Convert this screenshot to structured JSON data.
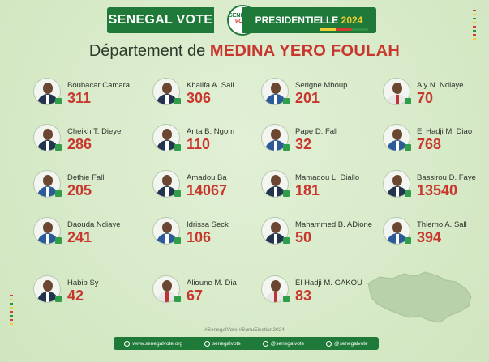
{
  "header": {
    "brand": "SENEGAL VOTE",
    "logo_line1": "SENEGAL",
    "logo_line2": "VOTE",
    "election": "PRESIDENTIELLE",
    "year": "2024"
  },
  "title": {
    "prefix": "Département de",
    "place": "MEDINA YERO FOULAH"
  },
  "candidates": [
    {
      "name": "Boubacar Camara",
      "votes": "311"
    },
    {
      "name": "Khalifa A. Sall",
      "votes": "306"
    },
    {
      "name": "Serigne Mboup",
      "votes": "201"
    },
    {
      "name": "Aly N. Ndiaye",
      "votes": "70"
    },
    {
      "name": "Cheikh T. Dieye",
      "votes": "286"
    },
    {
      "name": "Anta B. Ngom",
      "votes": "110"
    },
    {
      "name": "Pape D. Fall",
      "votes": "32"
    },
    {
      "name": "El Hadji M. Diao",
      "votes": "768"
    },
    {
      "name": "Dethie Fall",
      "votes": "205"
    },
    {
      "name": "Amadou Ba",
      "votes": "14067"
    },
    {
      "name": "Mamadou L. Diallo",
      "votes": "181"
    },
    {
      "name": "Bassirou D. Faye",
      "votes": "13540"
    },
    {
      "name": "Daouda Ndiaye",
      "votes": "241"
    },
    {
      "name": "Idrissa Seck",
      "votes": "106"
    },
    {
      "name": "Mahammed B. ADione",
      "votes": "50"
    },
    {
      "name": "Thierno A. Sall",
      "votes": "394"
    },
    {
      "name": "Habib Sy",
      "votes": "42"
    },
    {
      "name": "Alioune M. Dia",
      "votes": "67"
    },
    {
      "name": "El Hadji M. GAKOU",
      "votes": "83"
    }
  ],
  "footer": {
    "hashtags": "#SenegalVote  #SunuElection2024",
    "website": "www.senegalvote.org",
    "facebook": "senegalvote",
    "instagram": "@senegalvote",
    "twitter": "@senegalvote"
  },
  "colors": {
    "brand_green": "#1f7a3a",
    "accent_red": "#c8372e",
    "accent_yellow": "#f1cc33",
    "background": "#d8ebc9"
  }
}
